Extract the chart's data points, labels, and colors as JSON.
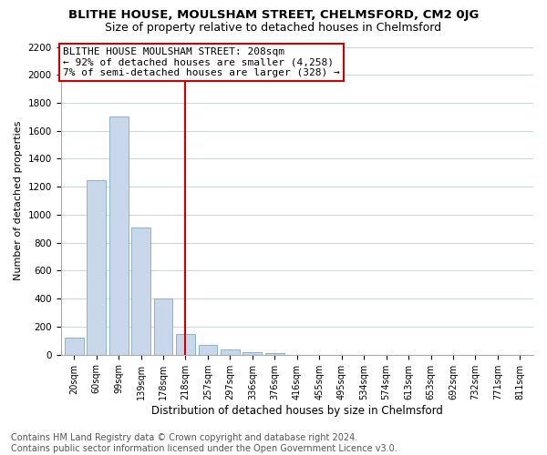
{
  "title": "BLITHE HOUSE, MOULSHAM STREET, CHELMSFORD, CM2 0JG",
  "subtitle": "Size of property relative to detached houses in Chelmsford",
  "xlabel": "Distribution of detached houses by size in Chelmsford",
  "ylabel": "Number of detached properties",
  "annotation_line1": "BLITHE HOUSE MOULSHAM STREET: 208sqm",
  "annotation_line2": "← 92% of detached houses are smaller (4,258)",
  "annotation_line3": "7% of semi-detached houses are larger (328) →",
  "footer_line1": "Contains HM Land Registry data © Crown copyright and database right 2024.",
  "footer_line2": "Contains public sector information licensed under the Open Government Licence v3.0.",
  "categories": [
    "20sqm",
    "60sqm",
    "99sqm",
    "139sqm",
    "178sqm",
    "218sqm",
    "257sqm",
    "297sqm",
    "336sqm",
    "376sqm",
    "416sqm",
    "455sqm",
    "495sqm",
    "534sqm",
    "574sqm",
    "613sqm",
    "653sqm",
    "692sqm",
    "732sqm",
    "771sqm",
    "811sqm"
  ],
  "values": [
    120,
    1250,
    1700,
    910,
    400,
    150,
    70,
    35,
    20,
    10,
    0,
    0,
    0,
    0,
    0,
    0,
    0,
    0,
    0,
    0,
    0
  ],
  "bar_color": "#c8d8ea",
  "bar_edge_color": "#7aaac8",
  "vline_index": 5,
  "vline_color": "#cc0000",
  "ylim": [
    0,
    2200
  ],
  "yticks": [
    0,
    200,
    400,
    600,
    800,
    1000,
    1200,
    1400,
    1600,
    1800,
    2000,
    2200
  ],
  "bg_color": "#ffffff",
  "grid_color": "#c8d4de",
  "title_fontsize": 9.5,
  "subtitle_fontsize": 9,
  "annotation_fontsize": 8,
  "footer_fontsize": 7,
  "ylabel_fontsize": 8,
  "xlabel_fontsize": 8.5
}
